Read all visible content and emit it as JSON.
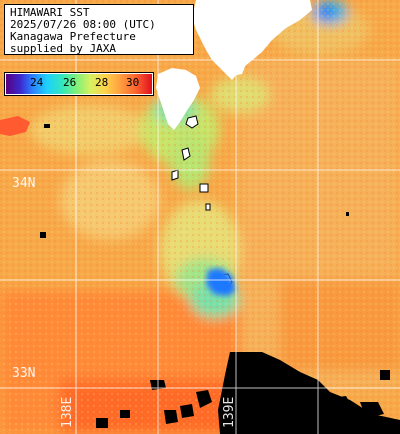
{
  "title": {
    "line1": "HIMAWARI SST",
    "line2": "2025/07/26 08:00 (UTC)",
    "line3": "Kanagawa Prefecture",
    "line4": "supplied by JAXA"
  },
  "colorbar": {
    "ticks": [
      "24",
      "26",
      "28",
      "30"
    ],
    "range": [
      22,
      31
    ]
  },
  "grid_labels": {
    "lat_34": "34N",
    "lat_33": "33N",
    "lon_138": "138E",
    "lon_139": "139E"
  },
  "colors": {
    "land": "#ffffff",
    "cloud": "#000000",
    "warm": "#f8a040",
    "hot": "#ff6a28",
    "mild": "#f6c870",
    "cool": "#d8e470",
    "cold": "#7ce0a0",
    "coldest": "#1e5aff"
  }
}
